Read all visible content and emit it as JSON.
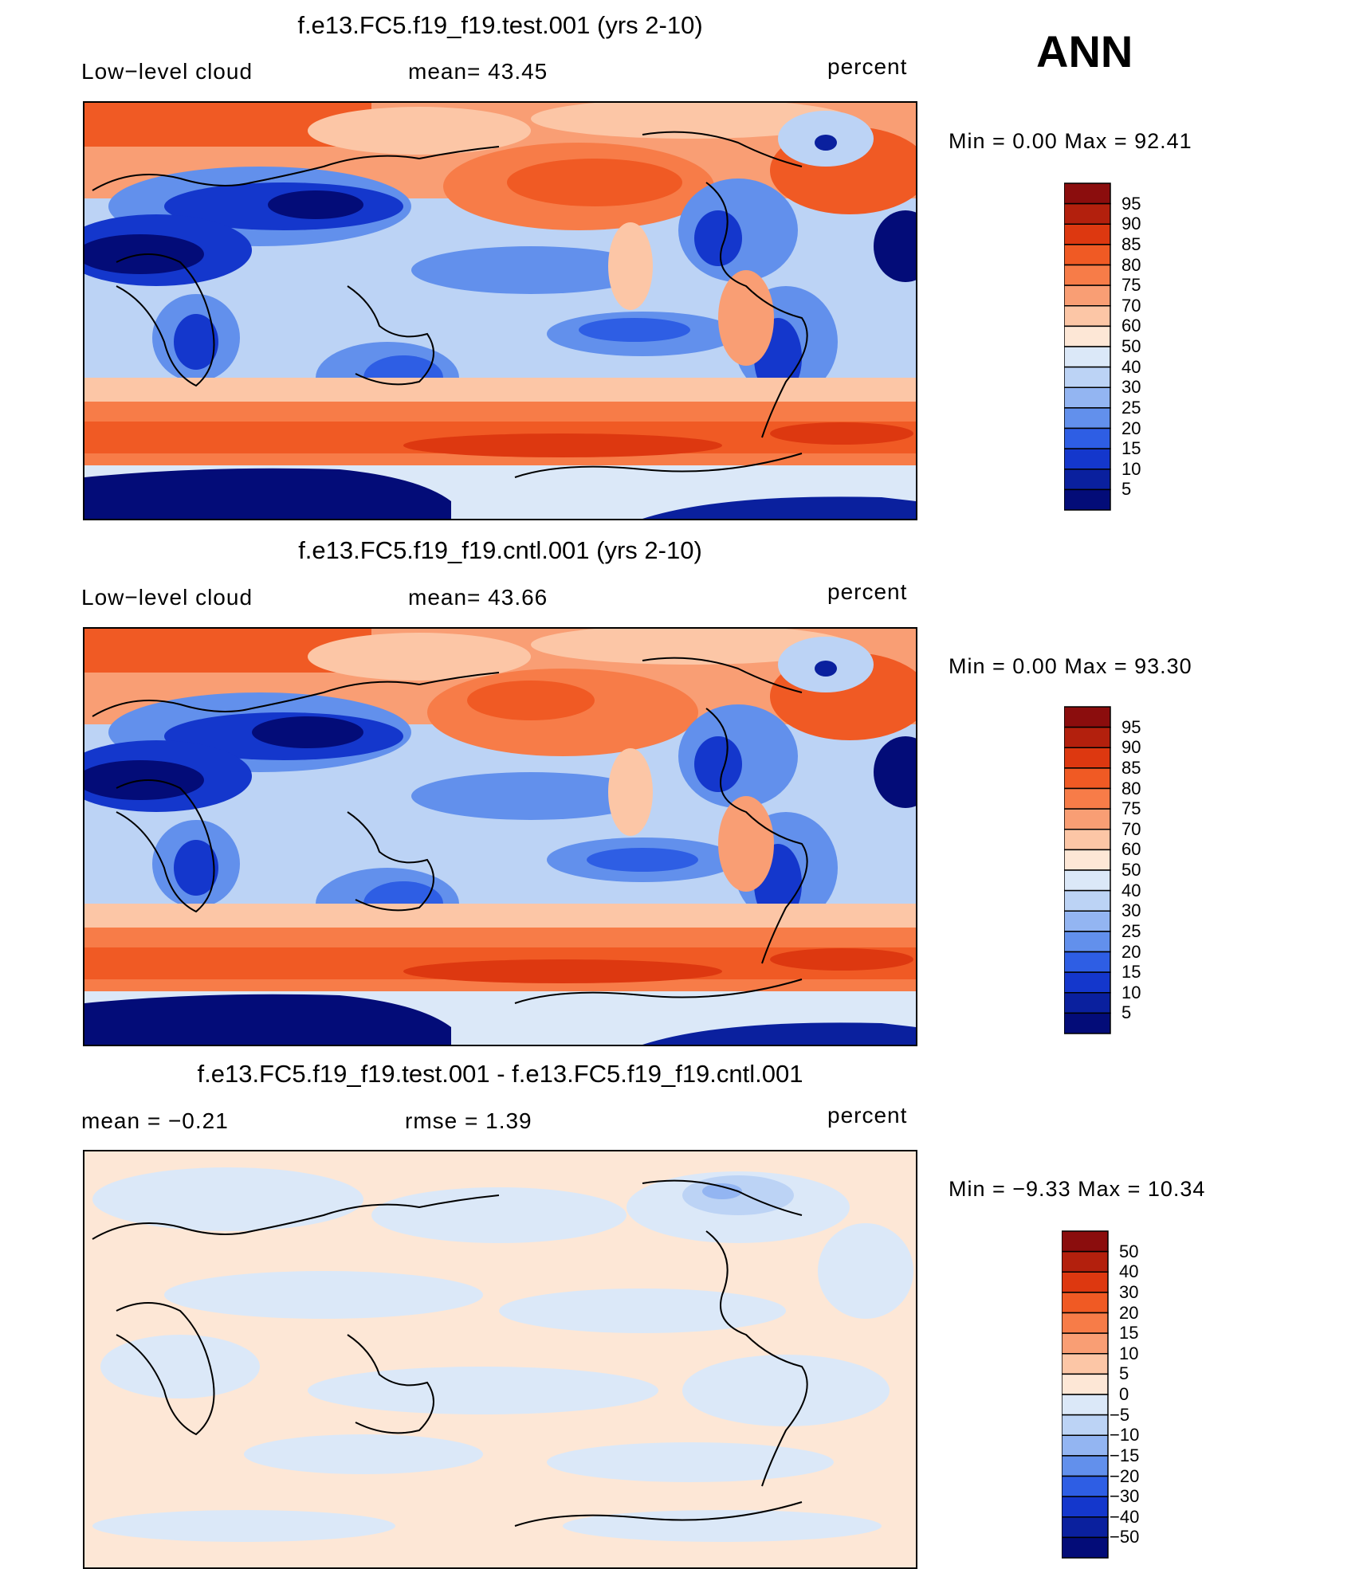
{
  "season": "ANN",
  "units": "percent",
  "panels": [
    {
      "id": "test",
      "title": "f.e13.FC5.f19_f19.test.001 (yrs 2-10)",
      "left_label": "Low−level cloud",
      "mid_label": "mean=   43.45",
      "right_label": "percent",
      "minmax": "Min =     0.00  Max =    92.41",
      "colorbar_levels": [
        "95",
        "90",
        "85",
        "80",
        "75",
        "70",
        "60",
        "50",
        "40",
        "30",
        "25",
        "20",
        "15",
        "10",
        "5"
      ]
    },
    {
      "id": "cntl",
      "title": "f.e13.FC5.f19_f19.cntl.001 (yrs 2-10)",
      "left_label": "Low−level cloud",
      "mid_label": "mean=   43.66",
      "right_label": "percent",
      "minmax": "Min =     0.00  Max =    93.30",
      "colorbar_levels": [
        "95",
        "90",
        "85",
        "80",
        "75",
        "70",
        "60",
        "50",
        "40",
        "30",
        "25",
        "20",
        "15",
        "10",
        "5"
      ]
    },
    {
      "id": "diff",
      "title": "f.e13.FC5.f19_f19.test.001 - f.e13.FC5.f19_f19.cntl.001",
      "left_label": "mean =    −0.21",
      "mid_label": "rmse =     1.39",
      "right_label": "percent",
      "minmax": "Min =   −9.33  Max =    10.34",
      "colorbar_levels": [
        "50",
        "40",
        "30",
        "20",
        "15",
        "10",
        "5",
        "0",
        "−5",
        "−10",
        "−15",
        "−20",
        "−30",
        "−40",
        "−50"
      ]
    }
  ],
  "colors": {
    "fill_colors_top_to_bottom": [
      "#8b0d0d",
      "#b3200d",
      "#dd3810",
      "#f05a24",
      "#f77c48",
      "#f99e74",
      "#fcc6a6",
      "#fde7d6",
      "#dbe8f8",
      "#bcd3f5",
      "#93b5f2",
      "#6290ec",
      "#2e5ee4",
      "#1437cc",
      "#0a209e",
      "#030c78"
    ],
    "diff_fill_colors_top_to_bottom": [
      "#8b0d0d",
      "#b3200d",
      "#dd3810",
      "#f05a24",
      "#f77c48",
      "#f99e74",
      "#fcc6a6",
      "#fde7d6",
      "#dbe8f8",
      "#bcd3f5",
      "#93b5f2",
      "#6290ec",
      "#2e5ee4",
      "#1437cc",
      "#0a209e",
      "#030c78"
    ]
  }
}
